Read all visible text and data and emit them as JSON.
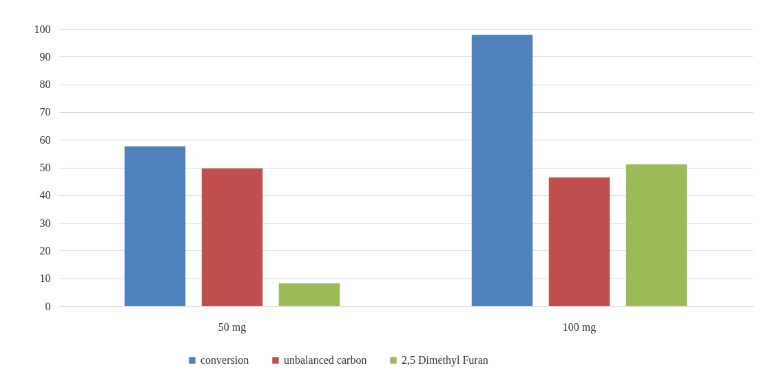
{
  "chart_data": {
    "type": "bar",
    "categories": [
      "50 mg",
      "100 mg"
    ],
    "series": [
      {
        "name": "conversion",
        "color": "#4f81bd",
        "values": [
          57.6,
          97.8
        ]
      },
      {
        "name": "unbalanced carbon",
        "color": "#c0504d",
        "values": [
          49.6,
          46.4
        ]
      },
      {
        "name": "2,5 Dimethyl Furan",
        "color": "#9bbb59",
        "values": [
          8.2,
          51.1
        ]
      }
    ],
    "ylim": [
      0,
      100
    ],
    "yticks": [
      0,
      10,
      20,
      30,
      40,
      50,
      60,
      70,
      80,
      90,
      100
    ],
    "grid": "y",
    "legend": "bottom"
  }
}
